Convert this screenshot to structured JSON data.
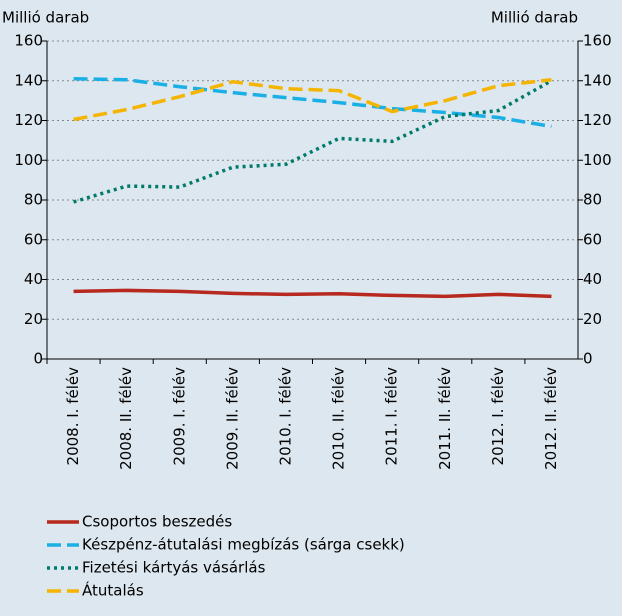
{
  "chart_data": {
    "type": "line",
    "y_label": "Millió darab",
    "y2_label": "Millió darab",
    "categories": [
      "2008. I. félév",
      "2008. II. félév",
      "2009. I. félév",
      "2009. II. félév",
      "2010. I. félév",
      "2010. II. félév",
      "2011. I. félév",
      "2011. II. félév",
      "2012. I. félév",
      "2012. II. félév"
    ],
    "series": [
      {
        "name": "Csoportos beszedés",
        "color": "#b7281e",
        "dash": "solid",
        "values": [
          34,
          34.5,
          34,
          33,
          32.5,
          32.8,
          32,
          31.5,
          32.5,
          31.5
        ]
      },
      {
        "name": "Készpénz-átutalási megbízás (sárga csekk)",
        "color": "#1ab0e6",
        "dash": "dashed",
        "values": [
          141,
          140.5,
          137,
          134,
          131.5,
          129,
          126,
          124,
          121.5,
          117
        ]
      },
      {
        "name": "Fizetési kártyás vásárlás",
        "color": "#007a6a",
        "dash": "dotted",
        "values": [
          79,
          87,
          86.5,
          96.5,
          98,
          111,
          109.5,
          122,
          125,
          140
        ]
      },
      {
        "name": "Átutalás",
        "color": "#f5b400",
        "dash": "dashed",
        "values": [
          120.5,
          125.5,
          132,
          139.5,
          136,
          135,
          124.5,
          130,
          137.5,
          140.5
        ]
      }
    ],
    "ylim": [
      0,
      160
    ],
    "yticks": [
      0,
      20,
      40,
      60,
      80,
      100,
      120,
      140,
      160
    ],
    "y2lim": [
      0,
      160
    ],
    "y2ticks": [
      0,
      20,
      40,
      60,
      80,
      100,
      120,
      140,
      160
    ],
    "grid": true,
    "legend": "bottom"
  }
}
